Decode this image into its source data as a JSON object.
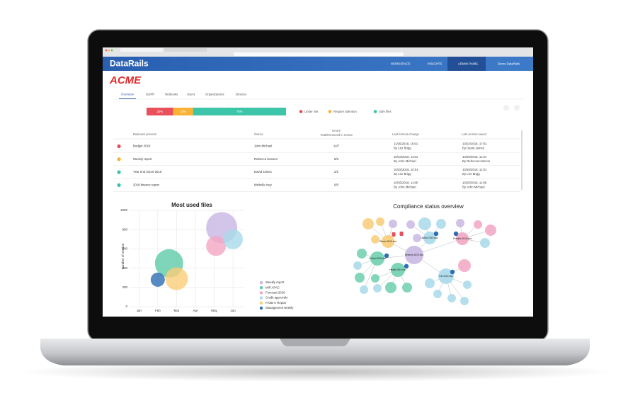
{
  "header": {
    "logo": "DataRails",
    "nav": [
      "WORKSPACE",
      "INSIGHTS",
      "ADMIN PANEL"
    ],
    "user": "Demo DataRails"
  },
  "company": "ACME",
  "tabs": [
    "Overview",
    "GDPR",
    "Netbooks",
    "Users",
    "Organizations",
    "Devices"
  ],
  "risk_bar": {
    "values": [
      20,
      15,
      70
    ],
    "value_labels": [
      "20%",
      "15%",
      "70%"
    ],
    "colors": [
      "#e8505b",
      "#f9b233",
      "#3cc5a8"
    ],
    "legend": [
      "Under risk",
      "Require attention",
      "Safe files"
    ]
  },
  "table": {
    "columns": [
      "Business process",
      "Owner",
      "Errors",
      "Last formula change",
      "Last version saved"
    ],
    "errors_subheader": "Total/Removed in review",
    "rows": [
      {
        "status_color": "#e8505b",
        "process": "Budget 2019",
        "owner": "John Michael",
        "errors": "14/7",
        "formula_date": "11/25/2018, 15:01",
        "formula_by": "By Lior Brigg",
        "version_date": "10/22/2018, 17:01",
        "version_by": "By David James"
      },
      {
        "status_color": "#f9b233",
        "process": "Weekly report",
        "owner": "Rebecca Hanson",
        "errors": "5/0",
        "formula_date": "10/23/2018, 11:01",
        "formula_by": "By John Michael",
        "version_date": "10/25/2018, 11:01",
        "version_by": "By Rebecca Hanson"
      },
      {
        "status_color": "#3cc5a8",
        "process": "Year end report 2019",
        "owner": "David James",
        "errors": "2/2",
        "formula_date": "10/25/2018, 10:01",
        "formula_by": "By Lior Brigg",
        "version_date": "10/25/2018, 11:01",
        "version_by": "By Lior Brigg"
      },
      {
        "status_color": "#3cc5a8",
        "process": "2018 finance report",
        "owner": "Michelle Ivey",
        "errors": "0/0",
        "formula_date": "10/25/2018, 11:05",
        "formula_by": "By John Michael",
        "version_date": "10/25/2018, 11:06",
        "version_by": "By John Michael"
      }
    ]
  },
  "chart_data": {
    "type": "bubble",
    "title": "Most used files",
    "y_label": "Number of version",
    "xlim": [
      0.5,
      6.6
    ],
    "xticks": [
      {
        "value": 1,
        "label": "Jan"
      },
      {
        "value": 2,
        "label": "Feb"
      },
      {
        "value": 3,
        "label": "Mar"
      },
      {
        "value": 4,
        "label": "Apr"
      },
      {
        "value": 5,
        "label": "May"
      },
      {
        "value": 6,
        "label": "Jun"
      }
    ],
    "ylim": [
      0,
      1000
    ],
    "yticks": [
      0,
      200,
      400,
      600,
      800,
      1000
    ],
    "grid": true,
    "series": [
      {
        "name": "Weekly report",
        "color": "#c7b6e4",
        "x": [
          5.4
        ],
        "values": [
          820
        ],
        "sizes": [
          22
        ]
      },
      {
        "name": "MIP APAC",
        "color": "#5fcaa8",
        "x": [
          2.6
        ],
        "values": [
          450
        ],
        "sizes": [
          20
        ]
      },
      {
        "name": "Forecast 2019",
        "color": "#f2a6c3",
        "x": [
          5.1
        ],
        "values": [
          630
        ],
        "sizes": [
          14
        ]
      },
      {
        "name": "Credit approvals",
        "color": "#a9d9ea",
        "x": [
          6.0
        ],
        "values": [
          700
        ],
        "sizes": [
          14
        ]
      },
      {
        "name": "FASB X Report",
        "color": "#f9cd78",
        "x": [
          3.0
        ],
        "values": [
          290
        ],
        "sizes": [
          16
        ]
      },
      {
        "name": "Management weekly",
        "color": "#2d6db3",
        "x": [
          2.0
        ],
        "values": [
          280
        ],
        "sizes": [
          10
        ]
      }
    ]
  },
  "compliance": {
    "title": "Compliance status overview",
    "hubs": [
      "Reserve 2019.xlsx",
      "Critical 2019.xlsx",
      "Health 2019.xlsx",
      "Life 2019.xlsx",
      "Vendor 2019.xlsx",
      "Active 2019.xlsx",
      "Portable 2019.xlsx"
    ]
  }
}
